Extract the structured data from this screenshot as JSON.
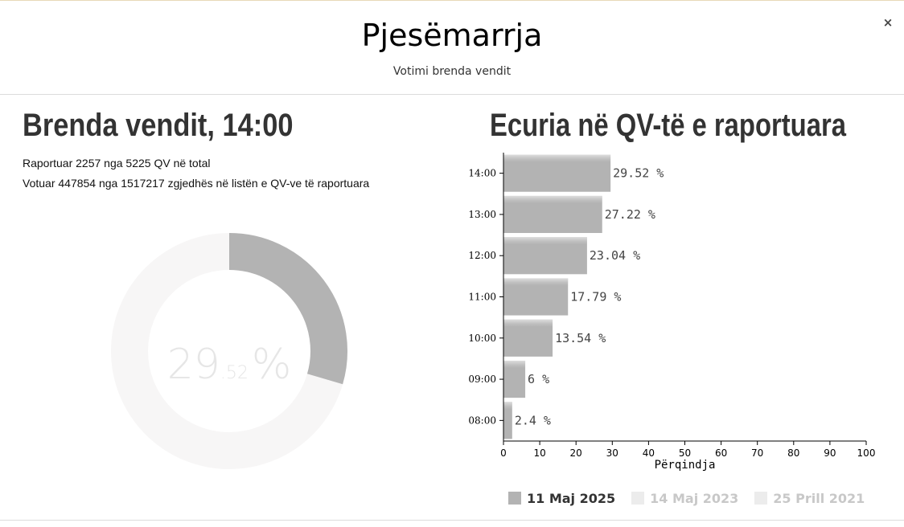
{
  "modal": {
    "title": "Pjesëmarrja",
    "subtitle": "Votimi brenda vendit",
    "close_label": "×"
  },
  "left": {
    "heading": "Brenda vendit, 14:00",
    "reported_line": "Raportuar 2257 nga 5225 QV në total",
    "voted_line": "Votuar 447854 nga 1517217 zgjedhës në listën e QV-ve të raportuara",
    "donut": {
      "value_fraction": 0.2952,
      "integer_part": "29",
      "decimal_part": ".52",
      "percent_sign": "%",
      "fill_color": "#b3b3b3",
      "track_color": "#f7f6f6"
    }
  },
  "right": {
    "heading": "Ecuria në QV-të e raportuara"
  },
  "chart_data": {
    "type": "bar",
    "orientation": "horizontal",
    "categories": [
      "14:00",
      "13:00",
      "12:00",
      "11:00",
      "10:00",
      "09:00",
      "08:00"
    ],
    "values": [
      29.52,
      27.22,
      23.04,
      17.79,
      13.54,
      6,
      2.4
    ],
    "data_labels": [
      "29.52 %",
      "27.22 %",
      "23.04 %",
      "17.79 %",
      "13.54 %",
      "6 %",
      "2.4 %"
    ],
    "xlabel": "Përqindja",
    "ylabel": "",
    "xlim": [
      0,
      100
    ],
    "x_ticks": [
      0,
      10,
      20,
      30,
      40,
      50,
      60,
      70,
      80,
      90,
      100
    ],
    "bar_color": "#b3b3b3",
    "grid": false,
    "legend_placement": "bottom",
    "series": [
      {
        "name": "11 Maj 2025",
        "color": "#b3b3b3",
        "active": true
      },
      {
        "name": "14 Maj 2023",
        "color": "#ececec",
        "active": false
      },
      {
        "name": "25 Prill 2021",
        "color": "#ececec",
        "active": false
      }
    ]
  },
  "legend": {
    "items": [
      {
        "label": "11 Maj 2025",
        "color": "#b3b3b3",
        "text_color": "#333333"
      },
      {
        "label": "14 Maj 2023",
        "color": "#ececec",
        "text_color": "#c8c8c8"
      },
      {
        "label": "25 Prill 2021",
        "color": "#ececec",
        "text_color": "#c8c8c8"
      }
    ]
  }
}
